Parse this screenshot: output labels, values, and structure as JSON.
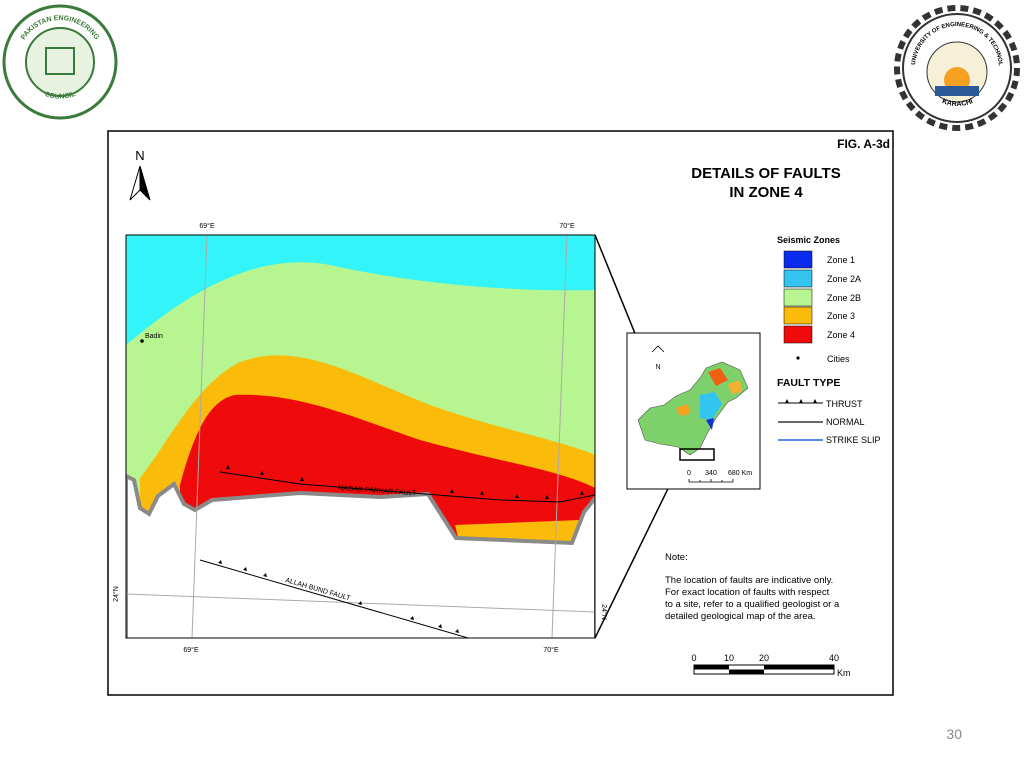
{
  "header": {
    "left_logo": {
      "top": "PAKISTAN ENGINEERING",
      "bottom": "COUNCIL"
    },
    "right_logo": {
      "top": "NED UNIVERSITY OF ENGINEERING & TECHNOLOGY",
      "bottom": "KARACHI"
    }
  },
  "figure": {
    "label": "FIG. A-3d",
    "title": [
      "DETAILS OF FAULTS",
      "IN ZONE 4"
    ]
  },
  "map": {
    "north": "N",
    "graticule": {
      "top": [
        "69°E",
        "70°E"
      ],
      "bottom": [
        "69°E",
        "70°E"
      ],
      "left": "24°N",
      "right": "24°N"
    },
    "cities": [
      "Badin"
    ],
    "faults": [
      "NAGAR PARKAR FAULT",
      "ALLAH BUND FAULT"
    ]
  },
  "legend": {
    "seismic_title": "Seismic Zones",
    "zones": [
      "Zone 1",
      "Zone 2A",
      "Zone 2B",
      "Zone 3",
      "Zone 4"
    ],
    "cities": "Cities",
    "fault_title": "FAULT TYPE",
    "faults": [
      "THRUST",
      "NORMAL",
      "STRIKE SLIP"
    ]
  },
  "inset": {
    "north": "N",
    "scale": [
      "0",
      "340",
      "680 Km"
    ]
  },
  "note": {
    "title": "Note:",
    "lines": [
      "The location of faults are indicative only.",
      "For exact location of faults with respect",
      "to a site, refer to a qualified geologist or a",
      "detailed geological map of the area."
    ]
  },
  "scale_bar": {
    "ticks": [
      "0",
      "10",
      "20",
      "40"
    ],
    "unit": "Km"
  },
  "page_number": "30"
}
